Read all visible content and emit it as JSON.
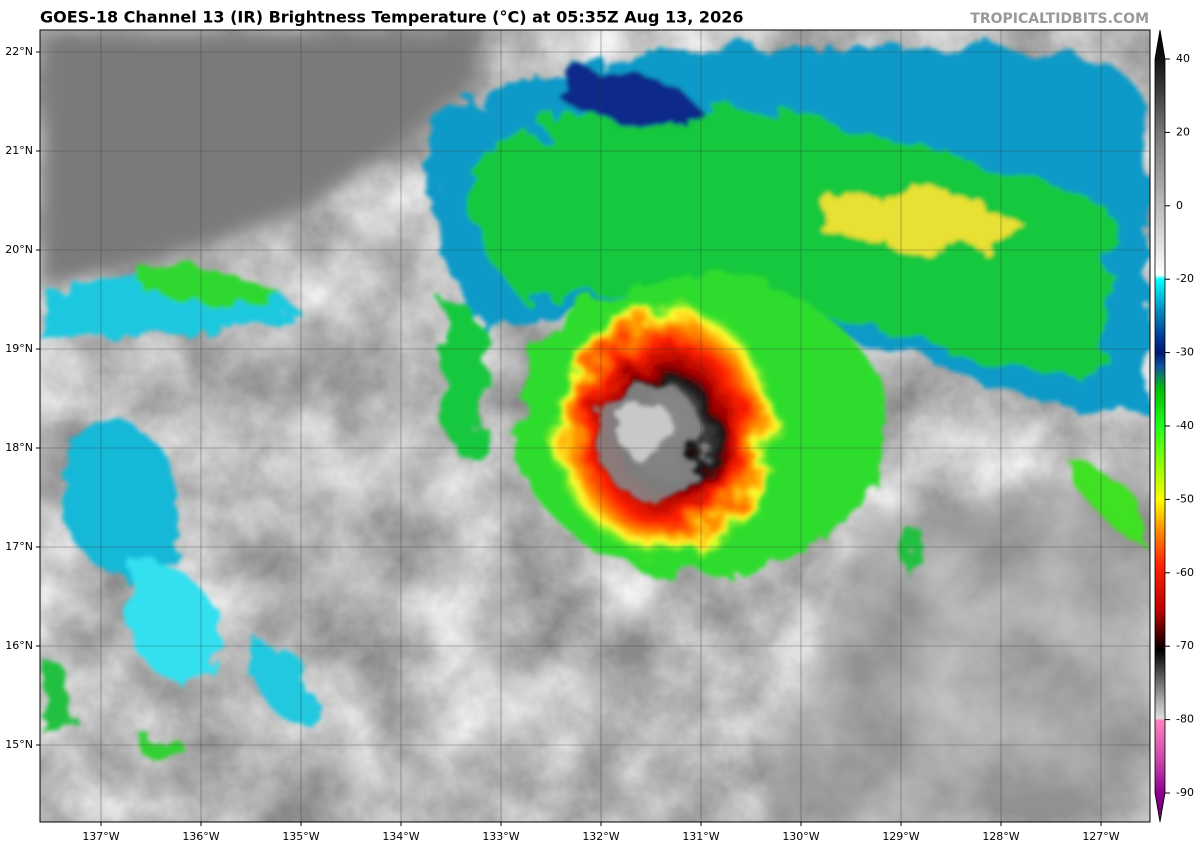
{
  "header": {
    "title": "GOES-18 Channel 13 (IR) Brightness Temperature (°C) at 05:35Z Aug 13, 2026",
    "credit": "TROPICALTIDBITS.COM"
  },
  "map": {
    "lat_labels": [
      "22°N",
      "21°N",
      "20°N",
      "19°N",
      "18°N",
      "17°N",
      "16°N",
      "15°N"
    ],
    "lon_labels": [
      "137°W",
      "136°W",
      "135°W",
      "134°W",
      "133°W",
      "132°W",
      "131°W",
      "130°W",
      "129°W",
      "128°W",
      "127°W"
    ]
  },
  "colorbar": {
    "ticks": [
      40,
      20,
      0,
      -20,
      -30,
      -40,
      -50,
      -60,
      -70,
      -80,
      -90
    ]
  }
}
